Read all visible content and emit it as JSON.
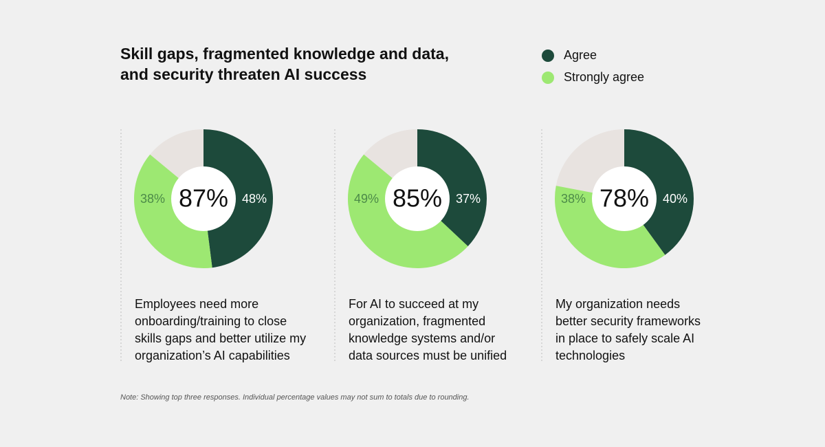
{
  "title": [
    "Skill gaps, fragmented knowledge and data,",
    "and security threaten AI success"
  ],
  "legend": [
    {
      "name": "Agree",
      "color": "#1d4a3b"
    },
    {
      "name": "Strongly agree",
      "color": "#9de872"
    }
  ],
  "remainder_color": "#e8e3e0",
  "chart_data": [
    {
      "type": "donut",
      "values": [
        48,
        38
      ],
      "value_labels": [
        "48%",
        "38%"
      ],
      "total": 87,
      "total_label": "87%",
      "caption": [
        "Employees need more",
        "onboarding/training to close",
        "skills gaps and better utilize my",
        "organization’s AI capabilities"
      ]
    },
    {
      "type": "donut",
      "values": [
        37,
        49
      ],
      "value_labels": [
        "37%",
        "49%"
      ],
      "total": 85,
      "total_label": "85%",
      "caption": [
        "For AI to succeed at my",
        "organization, fragmented",
        "knowledge systems and/or",
        "data sources must be unified"
      ]
    },
    {
      "type": "donut",
      "values": [
        40,
        38
      ],
      "value_labels": [
        "40%",
        "38%"
      ],
      "total": 78,
      "total_label": "78%",
      "caption": [
        "My organization needs",
        "better security frameworks",
        "in place to safely scale AI",
        "technologies"
      ]
    }
  ],
  "note": "Note: Showing top three responses. Individual percentage values may not sum to totals due to rounding."
}
